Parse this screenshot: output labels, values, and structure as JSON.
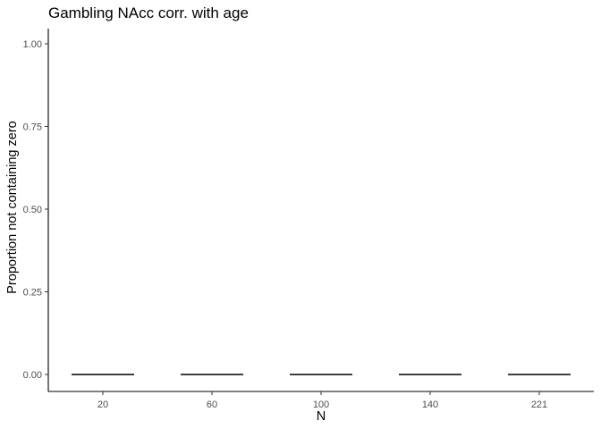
{
  "chart_data": {
    "type": "bar",
    "title": "Gambling NAcc corr. with age",
    "xlabel": "N",
    "ylabel": "Proportion not containing zero",
    "categories": [
      "20",
      "60",
      "100",
      "140",
      "221"
    ],
    "values": [
      0.0,
      0.0,
      0.0,
      0.0,
      0.0
    ],
    "ylim": [
      0,
      1
    ],
    "yticks": [
      "0.00",
      "0.25",
      "0.50",
      "0.75",
      "1.00"
    ],
    "grid": false,
    "legend": "none",
    "colors": {
      "mark": "#000000",
      "axis": "#000000",
      "tick_label": "#4d4d4d"
    }
  }
}
